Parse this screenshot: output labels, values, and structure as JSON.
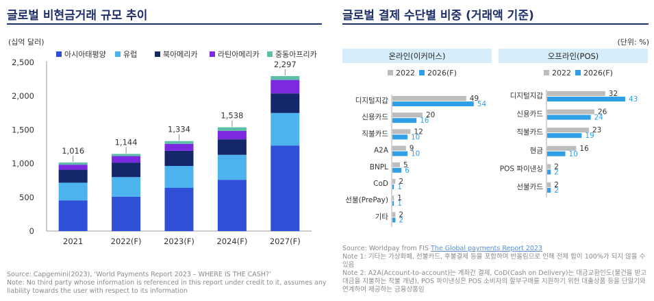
{
  "left": {
    "title": "글로벌 비현금거래 규모 추이",
    "unit": "(십억 달러)",
    "source": "Source: Capgemini(2023), ‘World Payments Report 2023 – WHERE IS THE CASH?’",
    "note": "Note: No third party whose information is referenced in this report under credit to it, assumes any liability towards the user with respect to its information"
  },
  "right": {
    "title": "글로벌 결제 수단별 비중 (거래액 기준)",
    "unit": "(단위: %)",
    "source_prefix": "Source: Worldpay from FIS ",
    "source_link": "The Global payments Report 2023",
    "note1": "Note 1: 기타는 가상화폐, 선불카드, 후불결제 등을 포함하며 반올림으로 인해 전체 합이 100%가 되지 않을 수 있음",
    "note2": "Note 2: A2A(Account-to-account)는 계좌간 결제, CoD(Cash on Delivery)는 대금교환인도(물건을 받고 대금을 지불하는 착불 개념), POS 파이낸싱은 POS 소비자의 할부구매를 지원하기 위한 대출상품 등을 단말기와 연계하여 제공하는 금융상품임"
  },
  "chart_data": [
    {
      "type": "bar",
      "stacked": true,
      "title": "글로벌 비현금거래 규모 추이",
      "ylabel": "(십억 달러)",
      "categories": [
        "2021",
        "2022(F)",
        "2023(F)",
        "2024(F)",
        "2027(F)"
      ],
      "totals": [
        "1,016",
        "1,144",
        "1,334",
        "1,538",
        "2,297"
      ],
      "yticks": [
        "0",
        "500",
        "1,000",
        "1,500",
        "2,000",
        "2,500"
      ],
      "ylim": [
        0,
        2500
      ],
      "series": [
        {
          "name": "아시아태평양",
          "color": "#2e4fd6",
          "values": [
            455,
            510,
            640,
            760,
            1268
          ]
        },
        {
          "name": "유럽",
          "color": "#4cb3ef",
          "values": [
            262,
            290,
            325,
            370,
            482
          ]
        },
        {
          "name": "북아메리카",
          "color": "#14276b",
          "values": [
            192,
            215,
            225,
            230,
            290
          ]
        },
        {
          "name": "라틴아메리카",
          "color": "#7b2ae0",
          "values": [
            75,
            97,
            103,
            126,
            200
          ]
        },
        {
          "name": "중동아프리카",
          "color": "#5cc0a8",
          "values": [
            32,
            32,
            41,
            52,
            57
          ]
        }
      ]
    },
    {
      "type": "bar",
      "orientation": "horizontal",
      "title": "온라인(이커머스)",
      "xlim": [
        0,
        60
      ],
      "categories": [
        "디지털지갑",
        "신용카드",
        "직불카드",
        "A2A",
        "BNPL",
        "CoD",
        "선불(PrePay)",
        "기타"
      ],
      "series": [
        {
          "name": "2022",
          "color": "#bdbdbd",
          "values": [
            49,
            20,
            12,
            9,
            5,
            2,
            1,
            2
          ]
        },
        {
          "name": "2026(F)",
          "color": "#2f9fe8",
          "values": [
            54,
            16,
            10,
            10,
            6,
            1,
            1,
            2
          ]
        }
      ]
    },
    {
      "type": "bar",
      "orientation": "horizontal",
      "title": "오프라인(POS)",
      "xlim": [
        0,
        60
      ],
      "categories": [
        "디지털지갑",
        "신용카드",
        "직불카드",
        "현금",
        "POS 파이낸싱",
        "선불카드"
      ],
      "series": [
        {
          "name": "2022",
          "color": "#bdbdbd",
          "values": [
            32,
            26,
            23,
            16,
            2,
            2
          ]
        },
        {
          "name": "2026(F)",
          "color": "#2f9fe8",
          "values": [
            43,
            24,
            19,
            10,
            2,
            2
          ]
        }
      ]
    }
  ]
}
